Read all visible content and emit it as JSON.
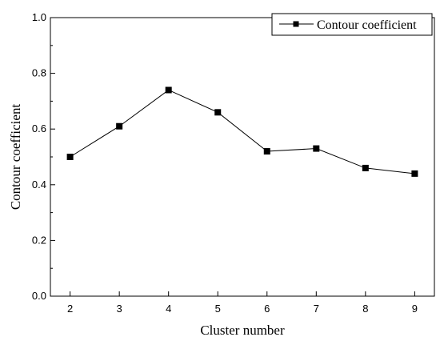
{
  "chart_data": {
    "type": "line",
    "x": [
      2,
      3,
      4,
      5,
      6,
      7,
      8,
      9
    ],
    "series": [
      {
        "name": "Contour coefficient",
        "values": [
          0.5,
          0.61,
          0.74,
          0.66,
          0.52,
          0.53,
          0.46,
          0.44
        ]
      }
    ],
    "xlabel": "Cluster number",
    "ylabel": "Contour coefficient",
    "xlim": [
      1.6,
      9.4
    ],
    "ylim": [
      0.0,
      1.0
    ],
    "xticks": [
      "2",
      "3",
      "4",
      "5",
      "6",
      "7",
      "8",
      "9"
    ],
    "yticks": [
      "0.0",
      "0.2",
      "0.4",
      "0.6",
      "0.8",
      "1.0"
    ],
    "grid": false,
    "legend_position": "top-right",
    "marker": "square",
    "line_color": "#000000"
  }
}
